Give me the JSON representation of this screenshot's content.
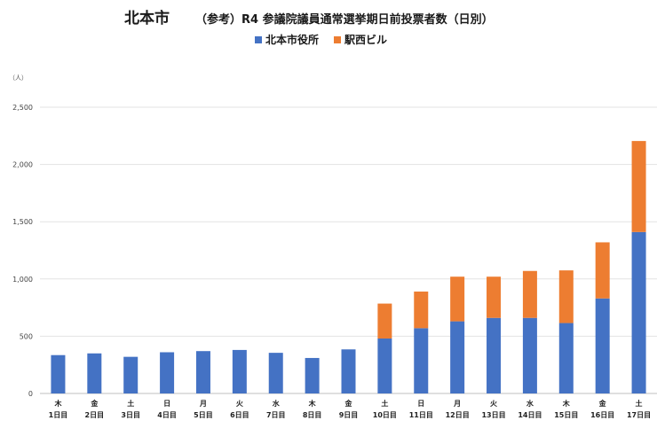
{
  "chart_data": {
    "type": "bar",
    "stacked": true,
    "title": "北本市",
    "subtitle": "（参考）R4 参議院議員通常選挙期日前投票者数（日別）",
    "unit_label": "（人）",
    "categories": [
      {
        "weekday": "木",
        "day": "1日目"
      },
      {
        "weekday": "金",
        "day": "2日目"
      },
      {
        "weekday": "土",
        "day": "3日目"
      },
      {
        "weekday": "日",
        "day": "4日目"
      },
      {
        "weekday": "月",
        "day": "5日目"
      },
      {
        "weekday": "火",
        "day": "6日目"
      },
      {
        "weekday": "水",
        "day": "7日目"
      },
      {
        "weekday": "木",
        "day": "8日目"
      },
      {
        "weekday": "金",
        "day": "9日目"
      },
      {
        "weekday": "土",
        "day": "10日目"
      },
      {
        "weekday": "日",
        "day": "11日目"
      },
      {
        "weekday": "月",
        "day": "12日目"
      },
      {
        "weekday": "火",
        "day": "13日目"
      },
      {
        "weekday": "水",
        "day": "14日目"
      },
      {
        "weekday": "木",
        "day": "15日目"
      },
      {
        "weekday": "金",
        "day": "16日目"
      },
      {
        "weekday": "土",
        "day": "17日目"
      }
    ],
    "series": [
      {
        "name": "北本市役所",
        "color": "#4472C4",
        "values": [
          335,
          350,
          320,
          360,
          370,
          380,
          355,
          310,
          385,
          480,
          570,
          630,
          660,
          660,
          615,
          830,
          1410
        ]
      },
      {
        "name": "駅西ビル",
        "color": "#ED7D31",
        "values": [
          0,
          0,
          0,
          0,
          0,
          0,
          0,
          0,
          0,
          305,
          320,
          390,
          360,
          410,
          460,
          490,
          795
        ]
      }
    ],
    "ylim": [
      0,
      2500
    ],
    "yticks": [
      0,
      500,
      1000,
      1500,
      2000,
      2500
    ],
    "ytick_labels": [
      "0",
      "500",
      "1,000",
      "1,500",
      "2,000",
      "2,500"
    ],
    "grid": true,
    "legend_position": "top-center"
  }
}
